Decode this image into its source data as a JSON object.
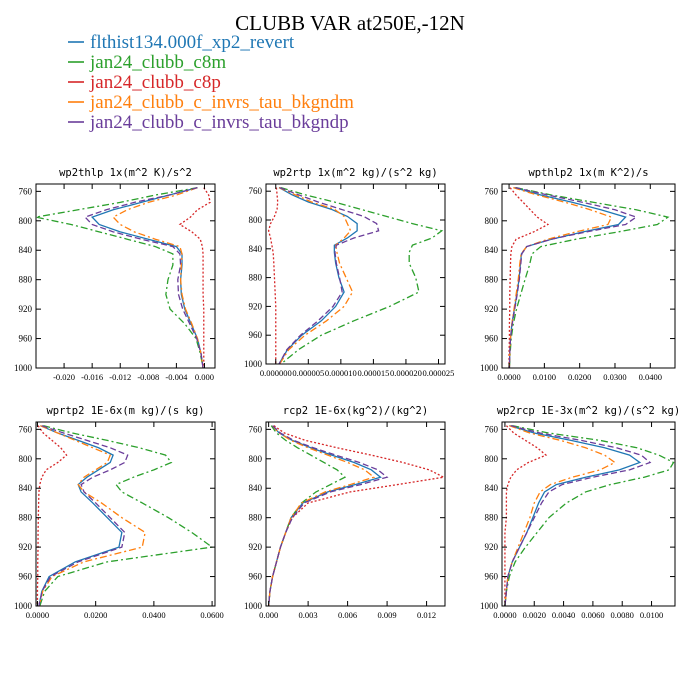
{
  "figure": {
    "title": "CLUBB VAR at250E,-12N",
    "colors": {
      "flthist134.000f_xp2_revert": "#1f77b4",
      "jan24_clubb_c8m": "#2ca02c",
      "jan24_clubb_c8p": "#d62728",
      "jan24_clubb_c_invrs_tau_bkgndm": "#ff7f0e",
      "jan24_clubb_c_invrs_tau_bkgndp": "#6a3d9a"
    },
    "legend": [
      {
        "name": "flthist134.000f_xp2_revert",
        "color": "#1f77b4",
        "dash": "solid"
      },
      {
        "name": "jan24_clubb_c8m",
        "color": "#2ca02c",
        "dash": "dashdot"
      },
      {
        "name": "jan24_clubb_c8p",
        "color": "#d62728",
        "dash": "dot"
      },
      {
        "name": "jan24_clubb_c_invrs_tau_bkgndm",
        "color": "#ff7f0e",
        "dash": "dashdot"
      },
      {
        "name": "jan24_clubb_c_invrs_tau_bkgndp",
        "color": "#6a3d9a",
        "dash": "dash"
      }
    ]
  },
  "chart_data": [
    {
      "type": "line",
      "title": "wp2thlp  1x(m^2 K)/s^2",
      "xlim": [
        -0.024,
        0.0015
      ],
      "ylim": [
        1000,
        750
      ],
      "xticks": [
        -0.02,
        -0.016,
        -0.012,
        -0.008,
        -0.004,
        0.0
      ],
      "xticklabels": [
        "-0.020",
        "-0.016",
        "-0.012",
        "-0.008",
        "-0.004",
        "0.000"
      ],
      "yticks": [
        760,
        800,
        840,
        880,
        920,
        960,
        1000
      ],
      "y": [
        755,
        765,
        775,
        785,
        795,
        805,
        815,
        825,
        835,
        845,
        860,
        880,
        900,
        920,
        940,
        960,
        980,
        1000
      ],
      "series": [
        {
          "name": "flthist134.000f_xp2_revert",
          "values": [
            -0.001,
            -0.005,
            -0.009,
            -0.013,
            -0.016,
            -0.015,
            -0.012,
            -0.008,
            -0.004,
            -0.0032,
            -0.0032,
            -0.0034,
            -0.0033,
            -0.0028,
            -0.0019,
            -0.001,
            -0.0005,
            -0.0002
          ]
        },
        {
          "name": "jan24_clubb_c8m",
          "values": [
            -0.001,
            -0.007,
            -0.012,
            -0.018,
            -0.024,
            -0.019,
            -0.015,
            -0.011,
            -0.007,
            -0.0045,
            -0.0045,
            -0.0052,
            -0.0055,
            -0.0049,
            -0.0028,
            -0.0012,
            -0.0006,
            -0.0002
          ]
        },
        {
          "name": "jan24_clubb_c8p",
          "values": [
            -0.0001,
            0.0006,
            0.0008,
            -0.001,
            -0.002,
            -0.0035,
            -0.0018,
            -0.0006,
            -0.0003,
            -0.0002,
            -0.0002,
            -0.0002,
            -0.0002,
            -0.0001,
            -0.0001,
            -0.0001,
            -0.0001,
            -0.0001
          ]
        },
        {
          "name": "jan24_clubb_c_invrs_tau_bkgndm",
          "values": [
            -0.001,
            -0.004,
            -0.008,
            -0.011,
            -0.013,
            -0.012,
            -0.01,
            -0.007,
            -0.0035,
            -0.0032,
            -0.0033,
            -0.0034,
            -0.0032,
            -0.0027,
            -0.0018,
            -0.001,
            -0.0005,
            -0.0002
          ]
        },
        {
          "name": "jan24_clubb_c_invrs_tau_bkgndp",
          "values": [
            -0.001,
            -0.005,
            -0.01,
            -0.014,
            -0.017,
            -0.016,
            -0.013,
            -0.009,
            -0.0045,
            -0.0035,
            -0.0034,
            -0.0038,
            -0.0037,
            -0.0031,
            -0.0021,
            -0.0011,
            -0.0005,
            -0.0002
          ]
        }
      ]
    },
    {
      "type": "line",
      "title": "wp2rtp  1x(m^2 kg)/(s^2 kg)",
      "xlim": [
        -1.5e-06,
        2.6e-05
      ],
      "ylim": [
        1000,
        750
      ],
      "xticks": [
        0.0,
        5e-06,
        1e-05,
        1.5e-05,
        2e-05,
        2.5e-05
      ],
      "xticklabels": [
        "0.000000",
        "0.000005",
        "0.000010",
        "0.000015",
        "0.000020",
        "0.000025"
      ],
      "yticks": [
        760,
        800,
        840,
        880,
        920,
        960,
        1000
      ],
      "y": [
        755,
        765,
        775,
        785,
        795,
        805,
        815,
        825,
        835,
        845,
        860,
        880,
        900,
        920,
        940,
        960,
        980,
        1000
      ],
      "series": [
        {
          "name": "flthist134.000f_xp2_revert",
          "values": [
            5e-07,
            2.5e-06,
            5e-06,
            8.5e-06,
            1.1e-05,
            1.25e-05,
            1.25e-05,
            1.1e-05,
            9e-06,
            9e-06,
            9.2e-06,
            9.7e-06,
            1.05e-05,
            9.2e-06,
            7e-06,
            4e-06,
            1.8e-06,
            5e-07
          ]
        },
        {
          "name": "jan24_clubb_c8m",
          "values": [
            8e-07,
            4.5e-06,
            9e-06,
            1.3e-05,
            1.7e-05,
            2.1e-05,
            2.55e-05,
            2.4e-05,
            2.1e-05,
            2.05e-05,
            2.05e-05,
            2.15e-05,
            2.2e-05,
            1.75e-05,
            1.2e-05,
            7e-06,
            3.5e-06,
            8e-07
          ]
        },
        {
          "name": "jan24_clubb_c8p",
          "values": [
            1e-07,
            2e-07,
            3e-07,
            2e-07,
            -2e-07,
            -8e-07,
            -1.1e-06,
            -8e-07,
            -6e-07,
            -4e-07,
            -3e-07,
            -2e-07,
            -1e-07,
            0.0,
            0.0,
            0.0,
            0.0,
            0.0
          ]
        },
        {
          "name": "jan24_clubb_c_invrs_tau_bkgndm",
          "values": [
            5e-07,
            3e-06,
            5.5e-06,
            9e-06,
            1.05e-05,
            1.1e-05,
            1.15e-05,
            1.05e-05,
            9.2e-06,
            9.4e-06,
            9.8e-06,
            1.08e-05,
            1.18e-05,
            1.05e-05,
            7.8e-06,
            4.5e-06,
            2e-06,
            6e-07
          ]
        },
        {
          "name": "jan24_clubb_c_invrs_tau_bkgndp",
          "values": [
            6e-07,
            3.5e-06,
            6.5e-06,
            1e-05,
            1.35e-05,
            1.55e-05,
            1.58e-05,
            1.2e-05,
            9.3e-06,
            9.1e-06,
            9.3e-06,
            9.8e-06,
            1.02e-05,
            8.8e-06,
            6.5e-06,
            3.8e-06,
            1.7e-06,
            5e-07
          ]
        }
      ]
    },
    {
      "type": "line",
      "title": "wpthlp2  1x(m K^2)/s",
      "xlim": [
        -0.002,
        0.047
      ],
      "ylim": [
        1000,
        750
      ],
      "xticks": [
        0.0,
        0.01,
        0.02,
        0.03,
        0.04
      ],
      "xticklabels": [
        "0.0000",
        "0.0100",
        "0.0200",
        "0.0300",
        "0.0400"
      ],
      "yticks": [
        760,
        800,
        840,
        880,
        920,
        960,
        1000
      ],
      "y": [
        755,
        765,
        775,
        785,
        795,
        805,
        815,
        825,
        835,
        845,
        860,
        880,
        900,
        920,
        940,
        960,
        980,
        1000
      ],
      "series": [
        {
          "name": "flthist134.000f_xp2_revert",
          "values": [
            0.0015,
            0.009,
            0.018,
            0.026,
            0.033,
            0.031,
            0.021,
            0.012,
            0.005,
            0.0035,
            0.0032,
            0.0028,
            0.0022,
            0.0015,
            0.0008,
            0.0004,
            0.0002,
            0.0001
          ]
        },
        {
          "name": "jan24_clubb_c8m",
          "values": [
            0.002,
            0.012,
            0.024,
            0.036,
            0.045,
            0.042,
            0.031,
            0.019,
            0.009,
            0.0065,
            0.0058,
            0.0045,
            0.0033,
            0.0021,
            0.0012,
            0.0006,
            0.0003,
            0.0001
          ]
        },
        {
          "name": "jan24_clubb_c8p",
          "values": [
            0.0003,
            0.002,
            0.004,
            0.006,
            0.008,
            0.011,
            0.007,
            0.002,
            0.0008,
            0.0005,
            0.0004,
            0.0003,
            0.0002,
            0.0002,
            0.0001,
            0.0001,
            0.0,
            0.0
          ]
        },
        {
          "name": "jan24_clubb_c_invrs_tau_bkgndm",
          "values": [
            0.0012,
            0.008,
            0.016,
            0.023,
            0.029,
            0.028,
            0.019,
            0.011,
            0.005,
            0.0034,
            0.003,
            0.0026,
            0.002,
            0.0014,
            0.0008,
            0.0004,
            0.0002,
            0.0001
          ]
        },
        {
          "name": "jan24_clubb_c_invrs_tau_bkgndp",
          "values": [
            0.0018,
            0.011,
            0.021,
            0.03,
            0.036,
            0.033,
            0.022,
            0.012,
            0.005,
            0.0036,
            0.0033,
            0.0029,
            0.0023,
            0.0016,
            0.0009,
            0.0004,
            0.0002,
            0.0001
          ]
        }
      ]
    },
    {
      "type": "line",
      "title": "wprtp2  1E-6x(m kg)/(s kg)",
      "xlim": [
        -0.0005,
        0.061
      ],
      "ylim": [
        1000,
        750
      ],
      "xticks": [
        0.0,
        0.02,
        0.04,
        0.06
      ],
      "xticklabels": [
        "0.0000",
        "0.0200",
        "0.0400",
        "0.0600"
      ],
      "yticks": [
        760,
        800,
        840,
        880,
        920,
        960,
        1000
      ],
      "y": [
        755,
        765,
        775,
        785,
        795,
        805,
        815,
        825,
        835,
        845,
        860,
        880,
        900,
        920,
        940,
        960,
        980,
        1000
      ],
      "series": [
        {
          "name": "flthist134.000f_xp2_revert",
          "values": [
            0.001,
            0.007,
            0.014,
            0.021,
            0.026,
            0.025,
            0.021,
            0.017,
            0.014,
            0.015,
            0.019,
            0.024,
            0.029,
            0.028,
            0.013,
            0.004,
            0.0015,
            0.0005
          ]
        },
        {
          "name": "jan24_clubb_c8m",
          "values": [
            0.002,
            0.012,
            0.024,
            0.035,
            0.044,
            0.046,
            0.04,
            0.033,
            0.027,
            0.029,
            0.036,
            0.045,
            0.053,
            0.06,
            0.024,
            0.007,
            0.0025,
            0.0008
          ]
        },
        {
          "name": "jan24_clubb_c8p",
          "values": [
            0.0002,
            0.002,
            0.005,
            0.008,
            0.01,
            0.007,
            0.003,
            0.0015,
            0.0008,
            0.0005,
            0.0004,
            0.0003,
            0.0002,
            0.0002,
            0.0001,
            0.0001,
            0.0,
            0.0
          ]
        },
        {
          "name": "jan24_clubb_c_invrs_tau_bkgndm",
          "values": [
            0.001,
            0.007,
            0.013,
            0.019,
            0.025,
            0.024,
            0.02,
            0.016,
            0.014,
            0.016,
            0.022,
            0.029,
            0.037,
            0.036,
            0.016,
            0.005,
            0.0018,
            0.0006
          ]
        },
        {
          "name": "jan24_clubb_c_invrs_tau_bkgndp",
          "values": [
            0.0015,
            0.009,
            0.017,
            0.025,
            0.031,
            0.03,
            0.025,
            0.019,
            0.015,
            0.016,
            0.02,
            0.025,
            0.03,
            0.029,
            0.014,
            0.0045,
            0.0016,
            0.0005
          ]
        }
      ]
    },
    {
      "type": "line",
      "title": "rcp2  1E-6x(kg^2)/(kg^2)",
      "xlim": [
        -0.0002,
        0.0134
      ],
      "ylim": [
        1000,
        750
      ],
      "xticks": [
        0.0,
        0.003,
        0.006,
        0.009,
        0.012
      ],
      "xticklabels": [
        "0.000",
        "0.003",
        "0.006",
        "0.009",
        "0.012"
      ],
      "yticks": [
        760,
        800,
        840,
        880,
        920,
        960,
        1000
      ],
      "y": [
        755,
        765,
        775,
        785,
        795,
        805,
        815,
        825,
        835,
        845,
        860,
        880,
        900,
        920,
        940,
        960,
        980,
        1000
      ],
      "series": [
        {
          "name": "flthist134.000f_xp2_revert",
          "values": [
            0.0003,
            0.0008,
            0.0018,
            0.0032,
            0.0048,
            0.0065,
            0.0078,
            0.0085,
            0.0066,
            0.0045,
            0.0026,
            0.0017,
            0.0013,
            0.0009,
            0.0006,
            0.0003,
            0.0001,
            0.0
          ]
        },
        {
          "name": "jan24_clubb_c8m",
          "values": [
            0.0002,
            0.0006,
            0.0013,
            0.0022,
            0.0032,
            0.0042,
            0.0052,
            0.0058,
            0.0047,
            0.0036,
            0.0025,
            0.0017,
            0.0013,
            0.0009,
            0.0006,
            0.0003,
            0.0001,
            0.0
          ]
        },
        {
          "name": "jan24_clubb_c8p",
          "values": [
            0.0004,
            0.0012,
            0.0028,
            0.0052,
            0.0078,
            0.0102,
            0.0122,
            0.0133,
            0.0098,
            0.0062,
            0.003,
            0.0018,
            0.0013,
            0.0009,
            0.0006,
            0.0003,
            0.0001,
            0.0
          ]
        },
        {
          "name": "jan24_clubb_c_invrs_tau_bkgndm",
          "values": [
            0.0003,
            0.0008,
            0.0017,
            0.003,
            0.0045,
            0.006,
            0.0073,
            0.008,
            0.0062,
            0.0043,
            0.0025,
            0.0017,
            0.0013,
            0.0009,
            0.0006,
            0.0003,
            0.0001,
            0.0
          ]
        },
        {
          "name": "jan24_clubb_c_invrs_tau_bkgndp",
          "values": [
            0.0003,
            0.0009,
            0.0019,
            0.0034,
            0.0051,
            0.0069,
            0.0083,
            0.009,
            0.007,
            0.0047,
            0.0027,
            0.0018,
            0.0013,
            0.0009,
            0.0006,
            0.0003,
            0.0001,
            0.0
          ]
        }
      ]
    },
    {
      "type": "line",
      "title": "wp2rcp  1E-3x(m^2 kg)/(s^2 kg)",
      "xlim": [
        -0.0002,
        0.0116
      ],
      "ylim": [
        1000,
        750
      ],
      "xticks": [
        0.0,
        0.002,
        0.004,
        0.006,
        0.008,
        0.01
      ],
      "xticklabels": [
        "0.0000",
        "0.0020",
        "0.0040",
        "0.0060",
        "0.0080",
        "0.0100"
      ],
      "yticks": [
        760,
        800,
        840,
        880,
        920,
        960,
        1000
      ],
      "y": [
        755,
        765,
        775,
        785,
        795,
        805,
        815,
        825,
        835,
        845,
        860,
        880,
        900,
        920,
        940,
        960,
        980,
        1000
      ],
      "series": [
        {
          "name": "flthist134.000f_xp2_revert",
          "values": [
            0.0003,
            0.002,
            0.0045,
            0.0068,
            0.0085,
            0.0092,
            0.0078,
            0.0055,
            0.0035,
            0.0027,
            0.0023,
            0.0019,
            0.0015,
            0.001,
            0.0005,
            0.0002,
            0.0001,
            0.0
          ]
        },
        {
          "name": "jan24_clubb_c8m",
          "values": [
            0.0005,
            0.003,
            0.0065,
            0.009,
            0.0105,
            0.0115,
            0.0112,
            0.0095,
            0.0072,
            0.0055,
            0.0042,
            0.003,
            0.0022,
            0.0014,
            0.0007,
            0.0003,
            0.0001,
            0.0
          ]
        },
        {
          "name": "jan24_clubb_c8p",
          "values": [
            0.0001,
            0.0006,
            0.0014,
            0.0022,
            0.0028,
            0.0016,
            0.0008,
            0.0004,
            0.0002,
            0.0001,
            0.0001,
            0.0001,
            0.0,
            0.0,
            0.0,
            0.0,
            0.0,
            0.0
          ]
        },
        {
          "name": "jan24_clubb_c_invrs_tau_bkgndm",
          "values": [
            0.0003,
            0.0017,
            0.0038,
            0.0055,
            0.0068,
            0.0075,
            0.0065,
            0.0046,
            0.0031,
            0.0024,
            0.002,
            0.0017,
            0.0013,
            0.0009,
            0.0005,
            0.0002,
            0.0001,
            0.0
          ]
        },
        {
          "name": "jan24_clubb_c_invrs_tau_bkgndp",
          "values": [
            0.0004,
            0.0024,
            0.0052,
            0.0076,
            0.0093,
            0.0099,
            0.0085,
            0.006,
            0.0039,
            0.003,
            0.0025,
            0.002,
            0.0015,
            0.001,
            0.0005,
            0.0002,
            0.0001,
            0.0
          ]
        }
      ]
    }
  ]
}
